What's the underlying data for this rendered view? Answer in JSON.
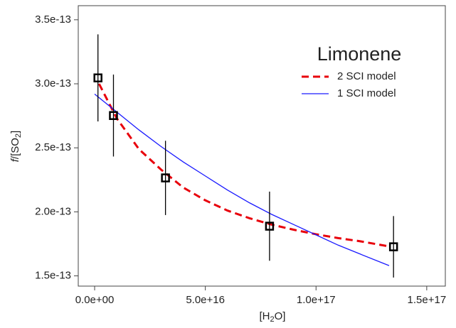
{
  "chart_data": {
    "type": "scatter",
    "legend_title": "Limonene",
    "xlabel_parts": [
      "[H",
      "2",
      "O]"
    ],
    "ylabel_parts": [
      "f",
      "/[SO",
      "2",
      "]"
    ],
    "xlim": [
      -7400000000000000.0,
      1.584e+17
    ],
    "ylim": [
      1.42e-13,
      3.61e-13
    ],
    "xticks": [
      {
        "value": 0,
        "label": "0.0e+00"
      },
      {
        "value": 5e+16,
        "label": "5.0e+16"
      },
      {
        "value": 1e+17,
        "label": "1.0e+17"
      },
      {
        "value": 1.5e+17,
        "label": "1.5e+17"
      }
    ],
    "yticks": [
      {
        "value": 1.5e-13,
        "label": "1.5e-13"
      },
      {
        "value": 2e-13,
        "label": "2.0e-13"
      },
      {
        "value": 2.5e-13,
        "label": "2.5e-13"
      },
      {
        "value": 3e-13,
        "label": "3.0e-13"
      },
      {
        "value": 3.5e-13,
        "label": "3.5e-13"
      }
    ],
    "points": {
      "color": "#000000",
      "x": [
        1500000000000000.0,
        8500000000000000.0,
        3.2e+16,
        7.9e+16,
        1.35e+17
      ],
      "values": [
        3.046e-13,
        2.752e-13,
        2.265e-13,
        1.888e-13,
        1.727e-13
      ],
      "errors": [
        3.4e-14,
        3.2e-14,
        2.9e-14,
        2.7e-14,
        2.4e-14
      ]
    },
    "series": [
      {
        "name": "2 SCI model",
        "color": "#e8000b",
        "dashed": true,
        "x": [
          2000000000000000.0,
          1e+16,
          2e+16,
          3e+16,
          4e+16,
          5e+16,
          6e+16,
          7e+16,
          8e+16,
          9e+16,
          1e+17,
          1.1e+17,
          1.2e+17,
          1.33e+17
        ],
        "values": [
          3e-13,
          2.73e-13,
          2.49e-13,
          2.33e-13,
          2.19e-13,
          2.09e-13,
          2.01e-13,
          1.95e-13,
          1.9e-13,
          1.86e-13,
          1.825e-13,
          1.795e-13,
          1.77e-13,
          1.73e-13
        ]
      },
      {
        "name": "1 SCI model",
        "color": "#1a1aff",
        "dashed": false,
        "x": [
          0,
          1e+16,
          2e+16,
          3e+16,
          4e+16,
          5e+16,
          6e+16,
          7e+16,
          8e+16,
          9e+16,
          1e+17,
          1.1e+17,
          1.2e+17,
          1.33e+17
        ],
        "values": [
          2.92e-13,
          2.78e-13,
          2.64e-13,
          2.51e-13,
          2.39e-13,
          2.28e-13,
          2.17e-13,
          2.07e-13,
          1.98e-13,
          1.9e-13,
          1.82e-13,
          1.74e-13,
          1.67e-13,
          1.58e-13
        ]
      }
    ]
  }
}
